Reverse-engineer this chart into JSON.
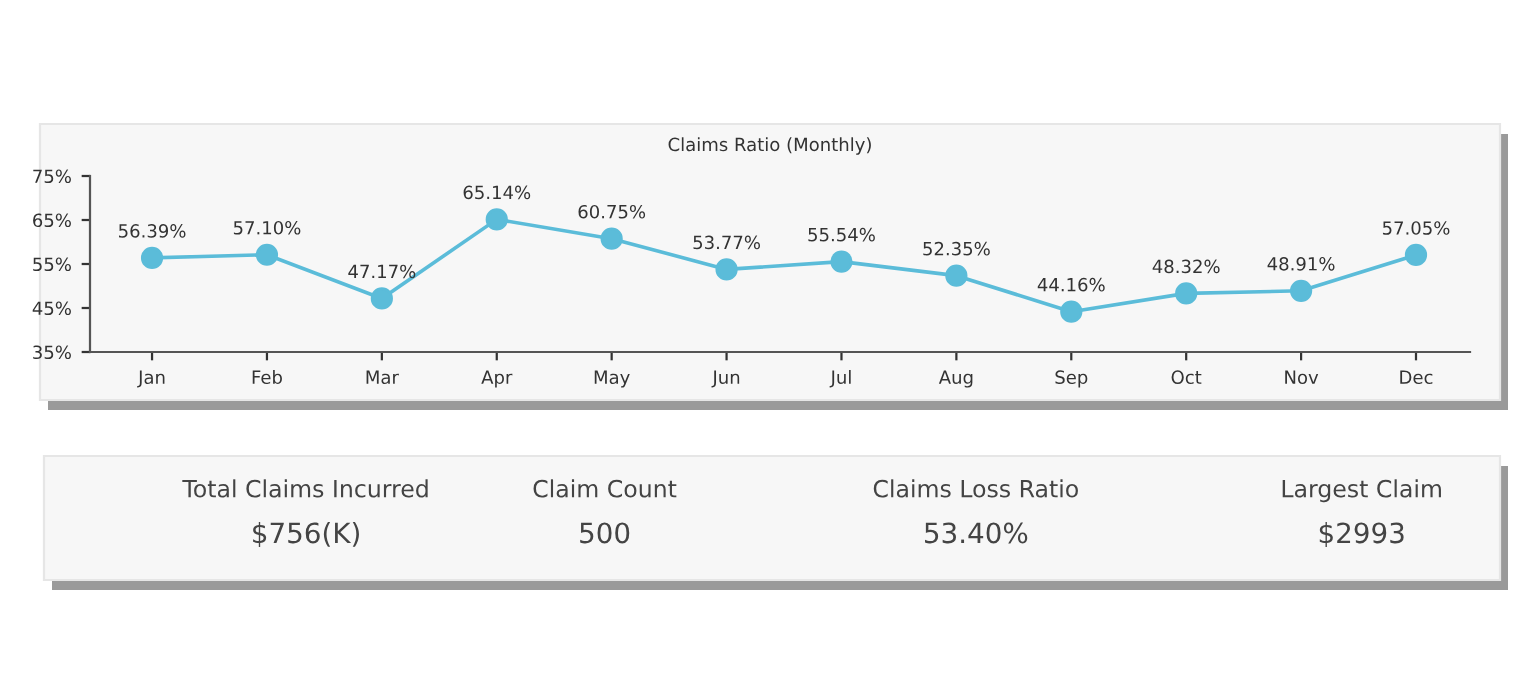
{
  "chart_data": [
    {
      "type": "line",
      "title": "Claims Ratio (Monthly)",
      "categories": [
        "Jan",
        "Feb",
        "Mar",
        "Apr",
        "May",
        "Jun",
        "Jul",
        "Aug",
        "Sep",
        "Oct",
        "Nov",
        "Dec"
      ],
      "series": [
        {
          "color": "#5bbcd9",
          "values": [
            56.39,
            57.1,
            47.17,
            65.14,
            60.75,
            53.77,
            55.54,
            52.35,
            44.16,
            48.32,
            48.91,
            57.05
          ],
          "value_labels": [
            "56.39%",
            "57.10%",
            "47.17%",
            "65.14%",
            "60.75%",
            "53.77%",
            "55.54%",
            "52.35%",
            "44.16%",
            "48.32%",
            "48.91%",
            "57.05%"
          ]
        }
      ],
      "ylim": [
        35,
        75
      ],
      "yticks": [
        {
          "value": 35,
          "label": "35%"
        },
        {
          "value": 45,
          "label": "45%"
        },
        {
          "value": 55,
          "label": "55%"
        },
        {
          "value": 65,
          "label": "65%"
        },
        {
          "value": 75,
          "label": "75%"
        }
      ],
      "marker": "circle",
      "line_style": "solid"
    },
    {
      "type": "other",
      "annotations": [
        "Total Claims Incurred",
        "$756(K)",
        "Claim Count",
        "500",
        "Claims Loss Ratio",
        "53.40%",
        "Largest Claim",
        "$2993"
      ]
    }
  ]
}
